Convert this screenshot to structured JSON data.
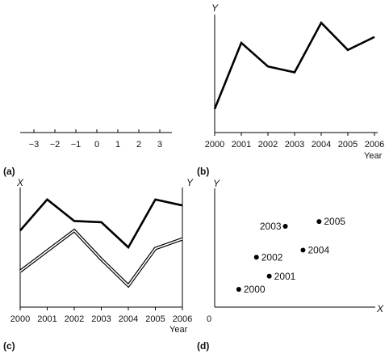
{
  "panels": {
    "a": {
      "label": "(a)"
    },
    "b": {
      "label": "(b)"
    },
    "c": {
      "label": "(c)"
    },
    "d": {
      "label": "(d)"
    }
  },
  "chart_data": [
    {
      "id": "a",
      "type": "line",
      "panel_label": "(a)",
      "title": "",
      "xlabel": "",
      "ylabel": "",
      "x_ticks": [
        "−3",
        "−2",
        "−1",
        "0",
        "1",
        "2",
        "3"
      ],
      "xlim": [
        -3.5,
        3.5
      ],
      "series": []
    },
    {
      "id": "b",
      "type": "line",
      "panel_label": "(b)",
      "title": "",
      "xlabel": "Year",
      "ylabel": "Y",
      "x": [
        "2000",
        "2001",
        "2002",
        "2003",
        "2004",
        "2005",
        "2006"
      ],
      "ylim": [
        0,
        10
      ],
      "series": [
        {
          "values": [
            2.0,
            7.6,
            5.6,
            5.1,
            9.3,
            7.0,
            8.1
          ],
          "color": "#000000"
        }
      ]
    },
    {
      "id": "c",
      "type": "line",
      "panel_label": "(c)",
      "title": "",
      "xlabel": "Year",
      "ylabel_left": "X",
      "ylabel_right": "Y",
      "x": [
        "2000",
        "2001",
        "2002",
        "2003",
        "2004",
        "2005",
        "2006"
      ],
      "ylim": [
        0,
        10
      ],
      "series": [
        {
          "axis": "left",
          "style": "solid",
          "values": [
            6.4,
            9.0,
            7.2,
            7.1,
            5.0,
            9.0,
            8.5
          ],
          "color": "#000000"
        },
        {
          "axis": "right",
          "style": "double",
          "values": [
            3.0,
            4.7,
            6.4,
            4.0,
            1.8,
            4.9,
            5.7
          ],
          "color": "#000000"
        }
      ]
    },
    {
      "id": "d",
      "type": "scatter",
      "panel_label": "(d)",
      "title": "",
      "xlabel": "X",
      "ylabel": "Y",
      "origin_label": "0",
      "xlim": [
        0,
        10
      ],
      "ylim": [
        0,
        10
      ],
      "points": [
        {
          "label": "2000",
          "x": 1.5,
          "y": 1.5
        },
        {
          "label": "2001",
          "x": 3.4,
          "y": 2.6
        },
        {
          "label": "2002",
          "x": 2.6,
          "y": 4.2
        },
        {
          "label": "2003",
          "x": 4.4,
          "y": 6.8
        },
        {
          "label": "2004",
          "x": 5.5,
          "y": 4.8
        },
        {
          "label": "2005",
          "x": 6.5,
          "y": 7.2
        }
      ]
    }
  ]
}
